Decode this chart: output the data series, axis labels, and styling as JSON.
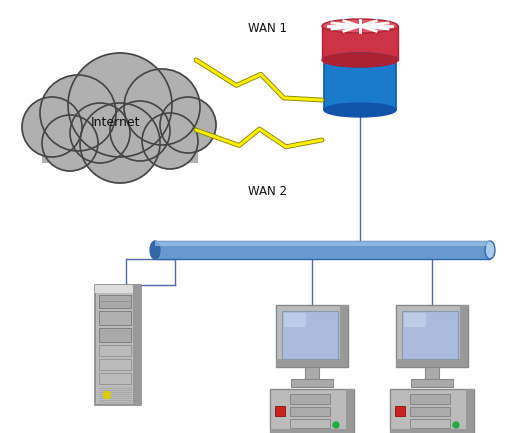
{
  "bg_color": "#ffffff",
  "wan1_label": "WAN 1",
  "wan2_label": "WAN 2",
  "internet_label": "Internet",
  "cloud_color": "#b0b0b0",
  "cloud_edge": "#444444",
  "router_blue": "#1a7acc",
  "router_red": "#cc3344",
  "router_red_dark": "#aa2233",
  "router_blue_dark": "#1155aa",
  "switch_color": "#6699cc",
  "switch_highlight": "#aaccee",
  "switch_dark": "#3366aa",
  "line_color": "#5566aa",
  "lightning_yellow": "#ffee00",
  "lightning_outline": "#888800",
  "server_body": "#bbbbbb",
  "server_light": "#dddddd",
  "server_dark": "#999999",
  "pc_body": "#bbbbbb",
  "pc_screen": "#aabbdd",
  "pc_red": "#cc2222",
  "pc_green": "#22aa44"
}
